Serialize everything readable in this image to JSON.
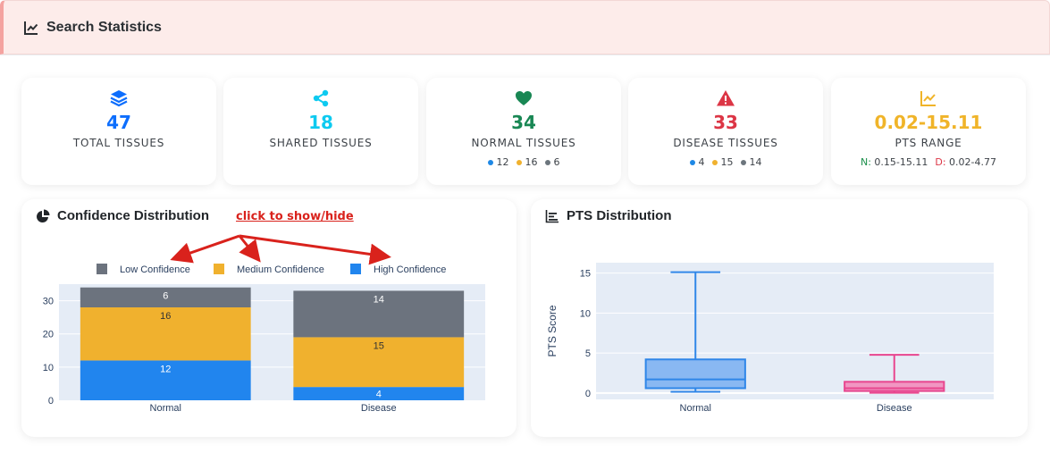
{
  "header": {
    "title": "Search Statistics",
    "icon": "chart-line-icon"
  },
  "stats": [
    {
      "value": "47",
      "label": "TOTAL TISSUES",
      "icon": "layers-icon",
      "color": "#0d6efd"
    },
    {
      "value": "18",
      "label": "SHARED TISSUES",
      "icon": "share-icon",
      "color": "#0dcaf0"
    },
    {
      "value": "34",
      "label": "NORMAL TISSUES",
      "icon": "heart-icon",
      "color": "#198754",
      "breakdown": [
        {
          "value": "12",
          "color": "#1e88e5"
        },
        {
          "value": "16",
          "color": "#f0b12e"
        },
        {
          "value": "6",
          "color": "#6c757d"
        }
      ]
    },
    {
      "value": "33",
      "label": "DISEASE TISSUES",
      "icon": "warning-icon",
      "color": "#dc3545",
      "breakdown": [
        {
          "value": "4",
          "color": "#1e88e5"
        },
        {
          "value": "15",
          "color": "#f0b12e"
        },
        {
          "value": "14",
          "color": "#6c757d"
        }
      ]
    },
    {
      "value": "0.02-15.11",
      "label": "PTS RANGE",
      "icon": "chart-line-icon",
      "color": "#f0b429",
      "range": {
        "n_label": "N:",
        "n_value": "0.15-15.11",
        "d_label": "D:",
        "d_value": "0.02-4.77"
      }
    }
  ],
  "confidence_panel": {
    "title": "Confidence Distribution",
    "icon": "pie-chart-icon"
  },
  "annotation": "click to show/hide",
  "pts_panel": {
    "title": "PTS Distribution",
    "icon": "bar-list-icon"
  },
  "chart_data": [
    {
      "type": "bar",
      "stacked": true,
      "categories": [
        "Normal",
        "Disease"
      ],
      "series": [
        {
          "name": "High Confidence",
          "values": [
            12,
            4
          ],
          "color": "#2185ee",
          "label_color": "#ffffff"
        },
        {
          "name": "Medium Confidence",
          "values": [
            16,
            15
          ],
          "color": "#f0b12e",
          "label_color": "#333333"
        },
        {
          "name": "Low Confidence",
          "values": [
            6,
            14
          ],
          "color": "#6c737e",
          "label_color": "#ffffff"
        }
      ],
      "legend_order": [
        "Low Confidence",
        "Medium Confidence",
        "High Confidence"
      ],
      "legend": "top",
      "yticks": [
        0,
        10,
        20,
        30
      ],
      "ylim": [
        0,
        35
      ],
      "grid": true
    },
    {
      "type": "box",
      "categories": [
        "Normal",
        "Disease"
      ],
      "ylabel": "PTS Score",
      "yticks": [
        0,
        5,
        10,
        15
      ],
      "ylim": [
        -0.8,
        16.3
      ],
      "boxes": [
        {
          "name": "Normal",
          "min": 0.15,
          "q1": 0.6,
          "median": 1.7,
          "q3": 4.2,
          "max": 15.11,
          "fill": "#89b8f2",
          "stroke": "#2f86e8"
        },
        {
          "name": "Disease",
          "min": 0.02,
          "q1": 0.25,
          "median": 0.6,
          "q3": 1.4,
          "max": 4.77,
          "fill": "#f196c2",
          "stroke": "#e8468f"
        }
      ],
      "grid": true
    }
  ]
}
